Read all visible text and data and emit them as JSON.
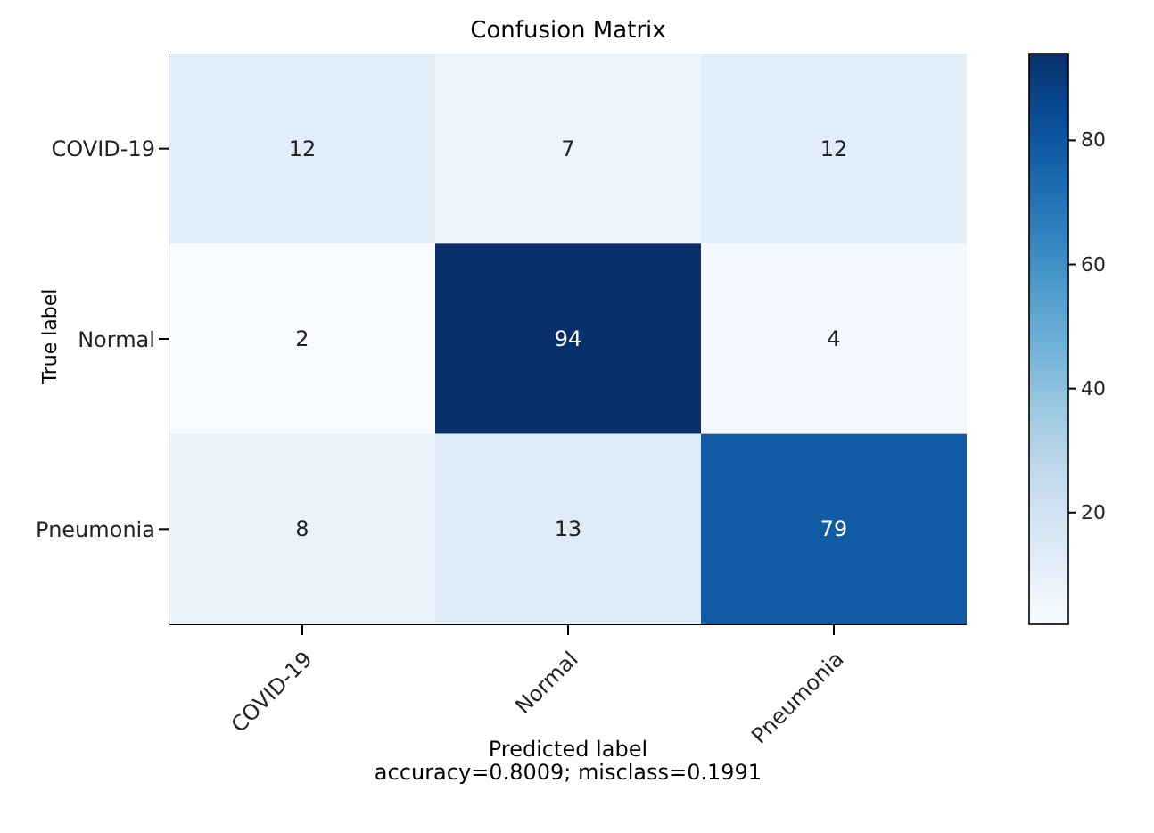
{
  "chart_data": {
    "type": "heatmap",
    "title": "Confusion Matrix",
    "xlabel": "Predicted label",
    "ylabel": "True label",
    "categories": [
      "COVID-19",
      "Normal",
      "Pneumonia"
    ],
    "y_categories": [
      "COVID-19",
      "Normal",
      "Pneumonia"
    ],
    "cells": [
      [
        12,
        7,
        12
      ],
      [
        2,
        94,
        4
      ],
      [
        8,
        13,
        79
      ]
    ],
    "clim": [
      2,
      94
    ],
    "cticks": [
      20,
      40,
      60,
      80
    ],
    "data_labels": true,
    "annotations": [
      "accuracy=0.8009; misclass=0.1991"
    ]
  }
}
